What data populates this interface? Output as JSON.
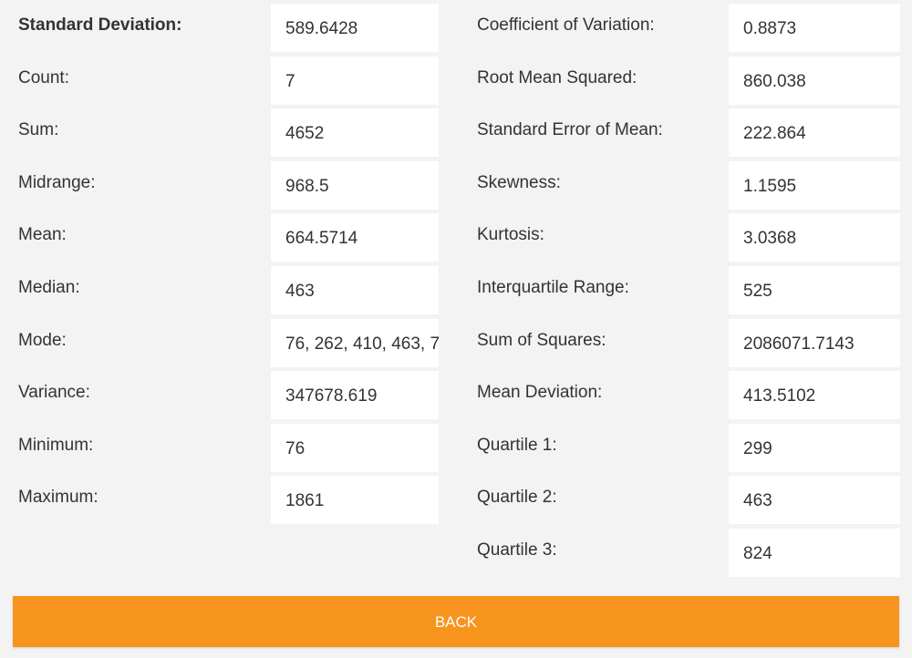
{
  "left": [
    {
      "label": "Standard Deviation:",
      "value": "589.6428"
    },
    {
      "label": "Count:",
      "value": "7"
    },
    {
      "label": "Sum:",
      "value": "4652"
    },
    {
      "label": "Midrange:",
      "value": "968.5"
    },
    {
      "label": "Mean:",
      "value": "664.5714"
    },
    {
      "label": "Median:",
      "value": "463"
    },
    {
      "label": "Mode:",
      "value": "76, 262, 410, 463, 7"
    },
    {
      "label": "Variance:",
      "value": "347678.619"
    },
    {
      "label": "Minimum:",
      "value": "76"
    },
    {
      "label": "Maximum:",
      "value": "1861"
    }
  ],
  "right": [
    {
      "label": "Coefficient of Variation:",
      "value": "0.8873"
    },
    {
      "label": "Root Mean Squared:",
      "value": "860.038"
    },
    {
      "label": "Standard Error of Mean:",
      "value": "222.864"
    },
    {
      "label": "Skewness:",
      "value": "1.1595"
    },
    {
      "label": "Kurtosis:",
      "value": "3.0368"
    },
    {
      "label": "Interquartile Range:",
      "value": "525"
    },
    {
      "label": "Sum of Squares:",
      "value": "2086071.7143"
    },
    {
      "label": "Mean Deviation:",
      "value": "413.5102"
    },
    {
      "label": "Quartile 1:",
      "value": "299"
    },
    {
      "label": "Quartile 2:",
      "value": "463"
    },
    {
      "label": "Quartile 3:",
      "value": "824"
    }
  ],
  "back_button": {
    "label": "BACK",
    "color": "#f7941d"
  }
}
